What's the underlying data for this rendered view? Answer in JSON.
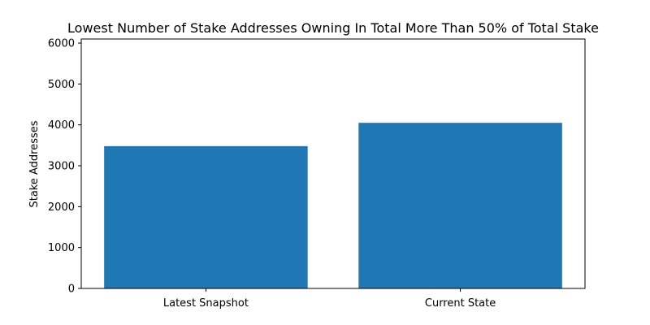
{
  "chart_data": {
    "type": "bar",
    "title": "Lowest Number of Stake Addresses Owning In Total More Than 50% of Total Stake",
    "xlabel": "",
    "ylabel": "Stake Addresses",
    "categories": [
      "Latest Snapshot",
      "Current State"
    ],
    "values": [
      3480,
      4050
    ],
    "ylim": [
      0,
      6100
    ],
    "yticks": [
      0,
      1000,
      2000,
      3000,
      4000,
      5000,
      6000
    ],
    "grid": false,
    "bar_color": "#1f77b4"
  }
}
